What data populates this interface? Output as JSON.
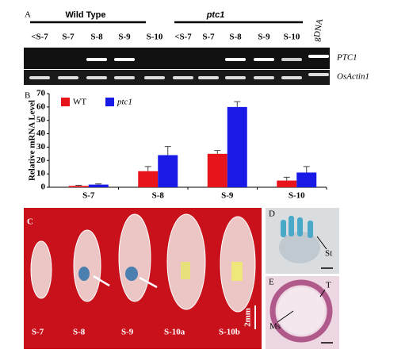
{
  "panel_a": {
    "label": "A",
    "groups": [
      "Wild Type",
      "ptc1"
    ],
    "lanes": [
      "<S-7",
      "S-7",
      "S-8",
      "S-9",
      "S-10",
      "<S-7",
      "S-7",
      "S-8",
      "S-9",
      "S-10",
      "gDNA"
    ],
    "rows": [
      "PTC1",
      "OsActin1"
    ]
  },
  "chart_data": {
    "type": "bar",
    "label": "B",
    "y_label": "Relative mRNA Level",
    "categories": [
      "S-7",
      "S-8",
      "S-9",
      "S-10"
    ],
    "series": [
      {
        "name": "WT",
        "color": "#e8141c",
        "values": [
          1,
          12,
          25,
          5
        ],
        "errors": [
          0.5,
          3.5,
          2.5,
          2.5
        ]
      },
      {
        "name": "ptc1",
        "color": "#1a1ae6",
        "values": [
          2,
          24,
          60,
          11
        ],
        "errors": [
          0.5,
          6.5,
          4,
          4.5
        ]
      }
    ],
    "ylim": [
      0,
      70
    ],
    "yticks": [
      0,
      10,
      20,
      30,
      40,
      50,
      60,
      70
    ]
  },
  "panel_c": {
    "label": "C",
    "stages": [
      "S-7",
      "S-8",
      "S-9",
      "S-10a",
      "S-10b"
    ],
    "scale": "2mm"
  },
  "panel_d": {
    "label": "D",
    "marker": "St"
  },
  "panel_e": {
    "label": "E",
    "markers": [
      "T",
      "Ms"
    ]
  }
}
